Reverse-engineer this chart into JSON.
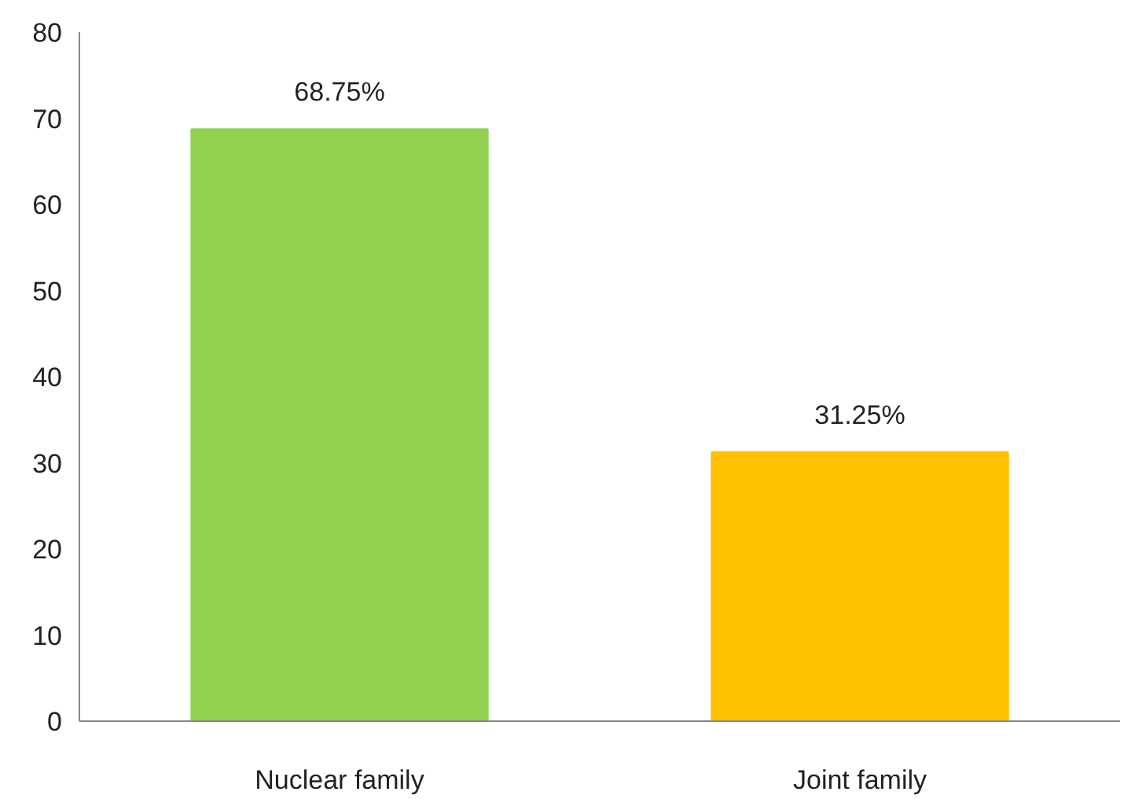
{
  "chart_data": {
    "type": "bar",
    "categories": [
      "Nuclear family",
      "Joint family"
    ],
    "values": [
      68.75,
      31.25
    ],
    "colors": [
      "#92d050",
      "#ffc000"
    ],
    "value_labels": [
      "68.75%",
      "31.25%"
    ],
    "ylim": [
      0,
      80
    ],
    "yticks": [
      0,
      10,
      20,
      30,
      40,
      50,
      60,
      70,
      80
    ],
    "grid": false
  }
}
